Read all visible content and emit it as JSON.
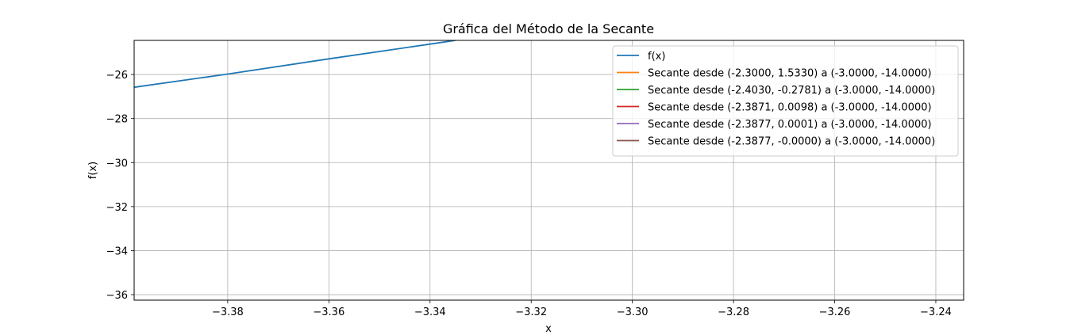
{
  "chart_data": {
    "type": "line",
    "title": "Gráfica del Método de la Secante",
    "xlabel": "x",
    "ylabel": "f(x)",
    "xlim": [
      -3.3985,
      -3.2345
    ],
    "ylim": [
      -36.25,
      -24.45
    ],
    "xticks": [
      -3.38,
      -3.36,
      -3.34,
      -3.32,
      -3.3,
      -3.28,
      -3.26,
      -3.24
    ],
    "xtick_labels": [
      "−3.38",
      "−3.36",
      "−3.34",
      "−3.32",
      "−3.30",
      "−3.28",
      "−3.26",
      "−3.24"
    ],
    "yticks": [
      -26,
      -28,
      -30,
      -32,
      -34,
      -36
    ],
    "ytick_labels": [
      "−26",
      "−28",
      "−30",
      "−32",
      "−34",
      "−36"
    ],
    "grid": true,
    "legend_position": "top-right",
    "series": [
      {
        "name": "f(x)",
        "color": "#1f77b4",
        "x": [
          -3.3985,
          -3.38,
          -3.36,
          -3.34,
          -3.335
        ],
        "y": [
          -26.58,
          -25.98,
          -25.29,
          -24.62,
          -24.45
        ]
      },
      {
        "name": "Secante desde (-2.3000, 1.5330) a (-3.0000, -14.0000)",
        "color": "#ff7f0e",
        "x": [],
        "y": []
      },
      {
        "name": "Secante desde (-2.4030, -0.2781) a (-3.0000, -14.0000)",
        "color": "#2ca02c",
        "x": [],
        "y": []
      },
      {
        "name": "Secante desde (-2.3871, 0.0098) a (-3.0000, -14.0000)",
        "color": "#d62728",
        "x": [],
        "y": []
      },
      {
        "name": "Secante desde (-2.3877, 0.0001) a (-3.0000, -14.0000)",
        "color": "#9467bd",
        "x": [],
        "y": []
      },
      {
        "name": "Secante desde (-2.3877, -0.0000) a (-3.0000, -14.0000)",
        "color": "#8c564b",
        "x": [],
        "y": []
      }
    ]
  }
}
